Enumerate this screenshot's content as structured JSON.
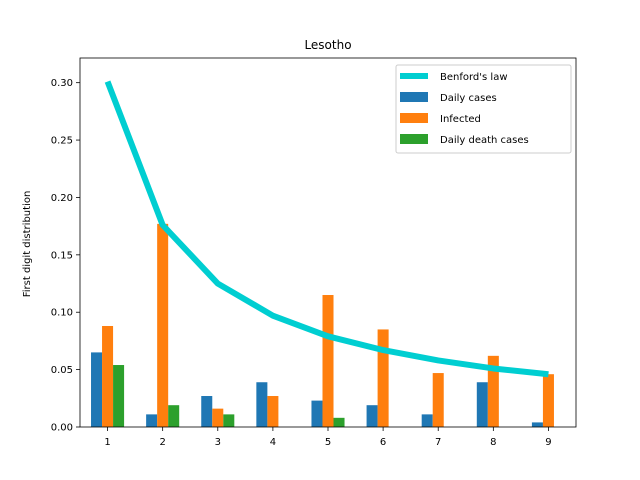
{
  "chart_data": {
    "type": "bar",
    "title": "Lesotho",
    "xlabel": "",
    "ylabel": "First digit distribution",
    "categories": [
      "1",
      "2",
      "3",
      "4",
      "5",
      "6",
      "7",
      "8",
      "9"
    ],
    "ylim": [
      0,
      0.3215
    ],
    "yticks": [
      "0.00",
      "0.05",
      "0.10",
      "0.15",
      "0.20",
      "0.25",
      "0.30"
    ],
    "grid": false,
    "legend_position": "upper-right",
    "line_series": {
      "name": "Benford's law",
      "color": "#00CED1",
      "values": [
        0.301,
        0.176,
        0.125,
        0.097,
        0.079,
        0.067,
        0.058,
        0.051,
        0.046
      ]
    },
    "series": [
      {
        "name": "Daily cases",
        "color": "#1f77b4",
        "values": [
          0.065,
          0.011,
          0.027,
          0.039,
          0.023,
          0.019,
          0.011,
          0.039,
          0.004
        ]
      },
      {
        "name": "Infected",
        "color": "#ff7f0e",
        "values": [
          0.088,
          0.177,
          0.016,
          0.027,
          0.115,
          0.085,
          0.047,
          0.062,
          0.046
        ]
      },
      {
        "name": "Daily death cases",
        "color": "#2ca02c",
        "values": [
          0.054,
          0.019,
          0.011,
          0,
          0.008,
          0,
          0,
          0,
          0
        ]
      }
    ]
  }
}
